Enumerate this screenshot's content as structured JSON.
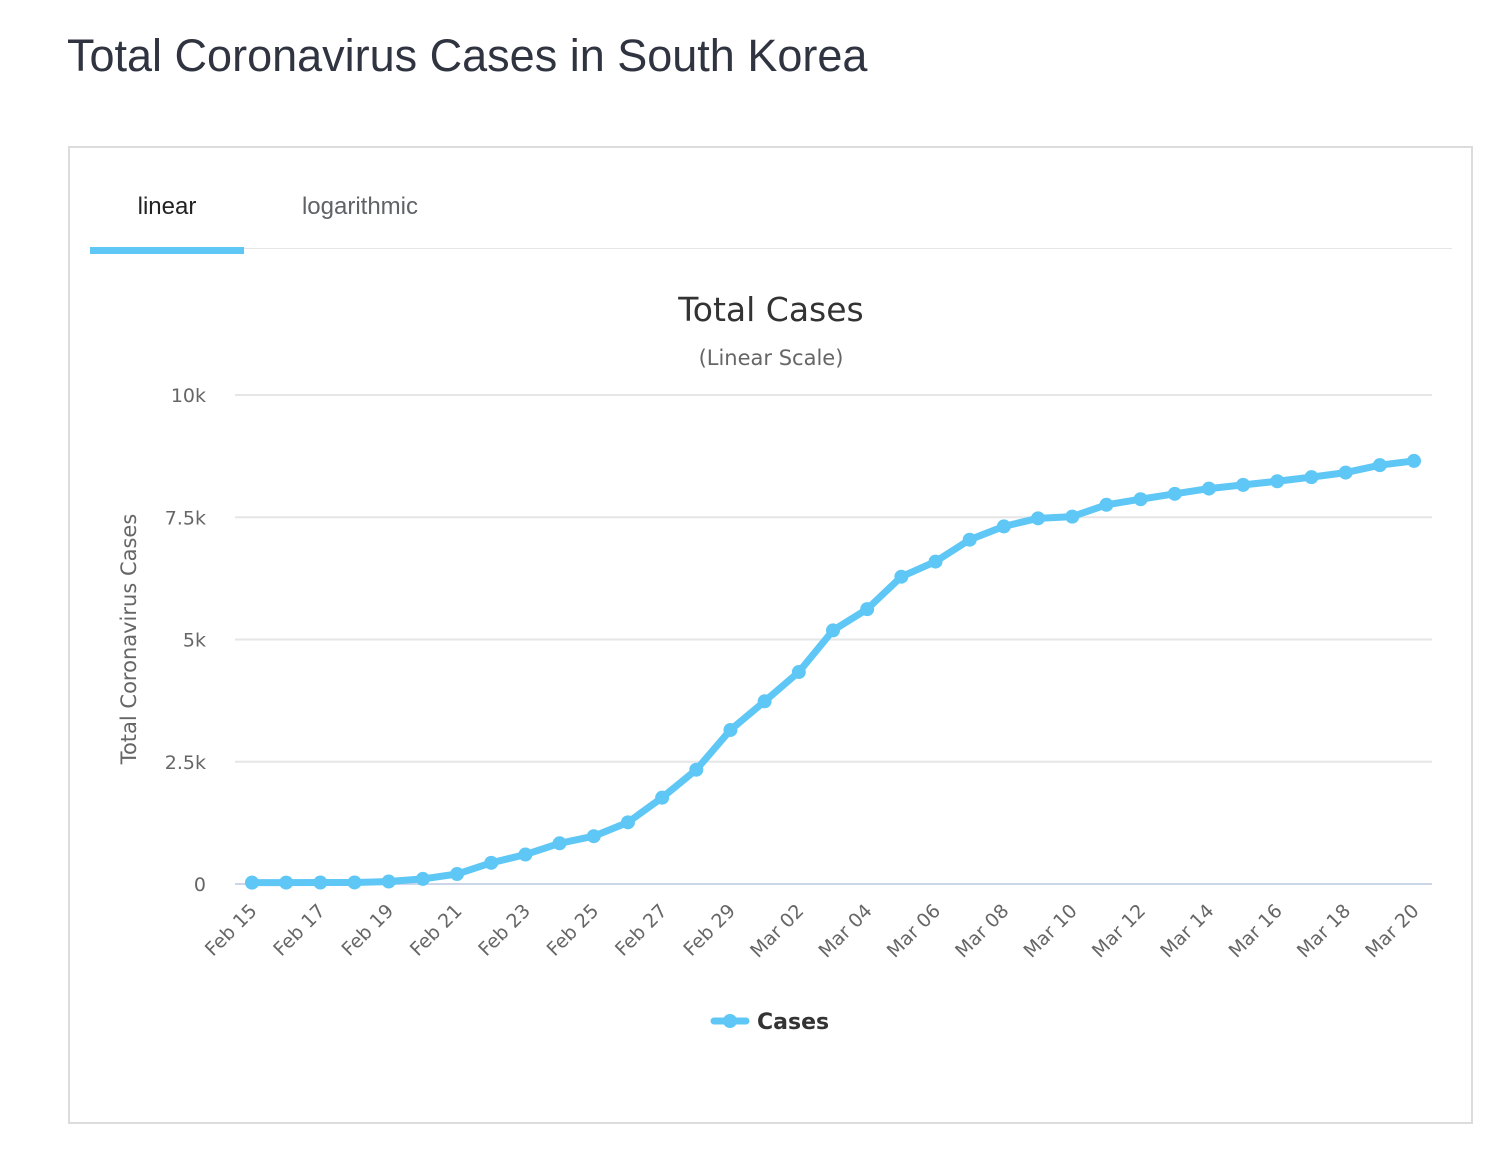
{
  "page": {
    "heading": "Total Coronavirus Cases in South Korea"
  },
  "tabs": [
    {
      "label": "linear",
      "active": true
    },
    {
      "label": "logarithmic",
      "active": false
    }
  ],
  "colors": {
    "series": "#5ec7f5",
    "grid": "#e6e6e6",
    "axis_line": "#ccd6eb",
    "heading": "#2f3440"
  },
  "chart_data": {
    "type": "line",
    "title": "Total Cases",
    "subtitle": "(Linear Scale)",
    "xlabel": "",
    "ylabel": "Total Coronavirus Cases",
    "ylim": [
      0,
      10000
    ],
    "y_ticks": [
      {
        "value": 0,
        "label": "0"
      },
      {
        "value": 2500,
        "label": "2.5k"
      },
      {
        "value": 5000,
        "label": "5k"
      },
      {
        "value": 7500,
        "label": "7.5k"
      },
      {
        "value": 10000,
        "label": "10k"
      }
    ],
    "x": [
      "Feb 15",
      "Feb 16",
      "Feb 17",
      "Feb 18",
      "Feb 19",
      "Feb 20",
      "Feb 21",
      "Feb 22",
      "Feb 23",
      "Feb 24",
      "Feb 25",
      "Feb 26",
      "Feb 27",
      "Feb 28",
      "Feb 29",
      "Mar 01",
      "Mar 02",
      "Mar 03",
      "Mar 04",
      "Mar 05",
      "Mar 06",
      "Mar 07",
      "Mar 08",
      "Mar 09",
      "Mar 10",
      "Mar 11",
      "Mar 12",
      "Mar 13",
      "Mar 14",
      "Mar 15",
      "Mar 16",
      "Mar 17",
      "Mar 18",
      "Mar 19",
      "Mar 20"
    ],
    "x_tick_labels": [
      "Feb 15",
      "Feb 17",
      "Feb 19",
      "Feb 21",
      "Feb 23",
      "Feb 25",
      "Feb 27",
      "Feb 29",
      "Mar 02",
      "Mar 04",
      "Mar 06",
      "Mar 08",
      "Mar 10",
      "Mar 12",
      "Mar 14",
      "Mar 16",
      "Mar 18",
      "Mar 20"
    ],
    "series": [
      {
        "name": "Cases",
        "values": [
          28,
          29,
          30,
          31,
          51,
          104,
          204,
          433,
          602,
          833,
          977,
          1261,
          1766,
          2337,
          3150,
          3736,
          4335,
          5186,
          5621,
          6284,
          6593,
          7041,
          7313,
          7478,
          7513,
          7755,
          7869,
          7979,
          8086,
          8162,
          8236,
          8320,
          8413,
          8565,
          8652
        ]
      }
    ],
    "grid": true,
    "legend": "bottom-center"
  }
}
